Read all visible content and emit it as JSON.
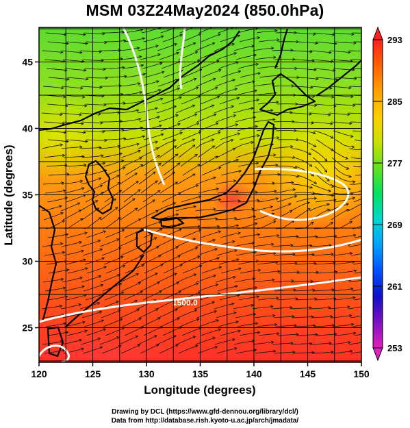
{
  "title": "MSM 03Z24May2024 (850.0hPa)",
  "x_axis": {
    "label": "Longitude (degrees)",
    "range": [
      120,
      150
    ],
    "ticks": [
      "120",
      "125",
      "130",
      "135",
      "140",
      "145",
      "150"
    ]
  },
  "y_axis": {
    "label": "Latitude  (degrees)",
    "range": [
      22.4,
      47.6
    ],
    "ticks": [
      "25",
      "30",
      "35",
      "40",
      "45"
    ]
  },
  "colorbar": {
    "ticks": [
      "253",
      "261",
      "269",
      "277",
      "285",
      "293"
    ],
    "min": 253,
    "max": 293,
    "colors": [
      "#e020c0",
      "#8010c0",
      "#1010c8",
      "#0050ff",
      "#00a0ff",
      "#00d8d0",
      "#00e060",
      "#60e020",
      "#c8e000",
      "#ffd000",
      "#ffa000",
      "#ff6000",
      "#ff2020"
    ]
  },
  "contour_label": "1500.0",
  "credit": {
    "line1": "Drawing by DCL (https://www.gfd-dennou.org/library/dcl/)",
    "line2": "Data from http://database.rish.kyoto-u.ac.jp/arch/jmadata/"
  }
}
